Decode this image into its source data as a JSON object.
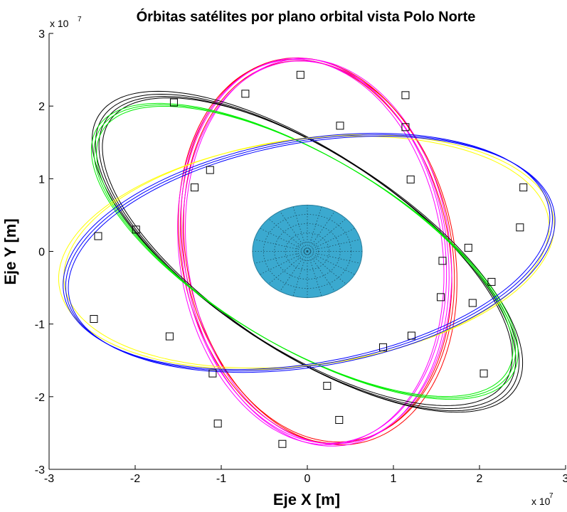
{
  "chart_data": {
    "type": "line",
    "title": "Órbitas satélites por plano orbital vista Polo Norte",
    "xlabel": "Eje X [m]",
    "ylabel": "Eje Y [m]",
    "xlim": [
      -3,
      3
    ],
    "ylim": [
      -3,
      3
    ],
    "scale_factor": "x 10",
    "scale_exponent": "7",
    "x_ticks": [
      "-3",
      "-2",
      "-1",
      "0",
      "1",
      "2",
      "3"
    ],
    "y_ticks": [
      "-3",
      "-2",
      "-1",
      "0",
      "1",
      "2",
      "3"
    ],
    "grid": false,
    "earth": {
      "cx": 0,
      "cy": 0,
      "radius": 0.637,
      "color": "#3ba9cf"
    },
    "orbit_units": "x 10^7 m",
    "series": [
      {
        "color": "#ff0000",
        "rx": 2.66,
        "ry": 1.56,
        "angle_deg": 98,
        "center": [
          0.12,
          0.0
        ],
        "offsets": [
          [
            -0.03,
            0.0
          ],
          [
            0.0,
            0.02
          ],
          [
            0.03,
            -0.02
          ]
        ]
      },
      {
        "color": "#ff00ff",
        "rx": 2.66,
        "ry": 1.53,
        "angle_deg": 96,
        "center": [
          0.08,
          -0.01
        ],
        "offsets": [
          [
            -0.04,
            0.0
          ],
          [
            -0.01,
            0.02
          ],
          [
            0.02,
            -0.02
          ],
          [
            0.05,
            0.01
          ]
        ]
      },
      {
        "color": "#000000",
        "rx": 3.0,
        "ry": 1.28,
        "angle_deg": -40,
        "center": [
          0.0,
          0.0
        ],
        "offsets": [
          [
            -0.06,
            0.04
          ],
          [
            -0.02,
            0.0
          ],
          [
            0.02,
            -0.03
          ],
          [
            0.06,
            -0.05
          ]
        ]
      },
      {
        "color": "#00ee00",
        "rx": 2.92,
        "ry": 1.24,
        "angle_deg": -37,
        "center": [
          -0.03,
          0.0
        ],
        "offsets": [
          [
            -0.03,
            0.02
          ],
          [
            0.0,
            0.0
          ],
          [
            0.03,
            -0.02
          ]
        ]
      },
      {
        "color": "#ffff00",
        "rx": 2.88,
        "ry": 1.55,
        "angle_deg": 10,
        "center": [
          0.0,
          -0.02
        ],
        "offsets": [
          [
            -0.04,
            0.0
          ],
          [
            0.02,
            0.02
          ]
        ]
      },
      {
        "color": "#0000ff",
        "rx": 2.88,
        "ry": 1.53,
        "angle_deg": 13,
        "center": [
          0.02,
          -0.02
        ],
        "offsets": [
          [
            -0.03,
            0.02
          ],
          [
            0.0,
            0.0
          ],
          [
            0.03,
            -0.02
          ]
        ]
      }
    ],
    "satellites": [
      [
        -0.08,
        2.43
      ],
      [
        1.14,
        2.15
      ],
      [
        -0.72,
        2.17
      ],
      [
        -1.55,
        2.05
      ],
      [
        0.38,
        1.73
      ],
      [
        1.14,
        1.71
      ],
      [
        -1.13,
        1.12
      ],
      [
        1.2,
        0.99
      ],
      [
        -1.31,
        0.88
      ],
      [
        2.51,
        0.88
      ],
      [
        -2.43,
        0.21
      ],
      [
        -1.99,
        0.3
      ],
      [
        2.47,
        0.33
      ],
      [
        1.57,
        -0.13
      ],
      [
        1.55,
        -0.63
      ],
      [
        1.87,
        0.05
      ],
      [
        2.14,
        -0.42
      ],
      [
        1.92,
        -0.71
      ],
      [
        -1.6,
        -1.17
      ],
      [
        1.21,
        -1.16
      ],
      [
        0.88,
        -1.32
      ],
      [
        -2.48,
        -0.93
      ],
      [
        -1.1,
        -1.68
      ],
      [
        2.05,
        -1.68
      ],
      [
        0.23,
        -1.85
      ],
      [
        0.37,
        -2.32
      ],
      [
        -1.04,
        -2.37
      ],
      [
        -0.29,
        -2.65
      ]
    ]
  }
}
